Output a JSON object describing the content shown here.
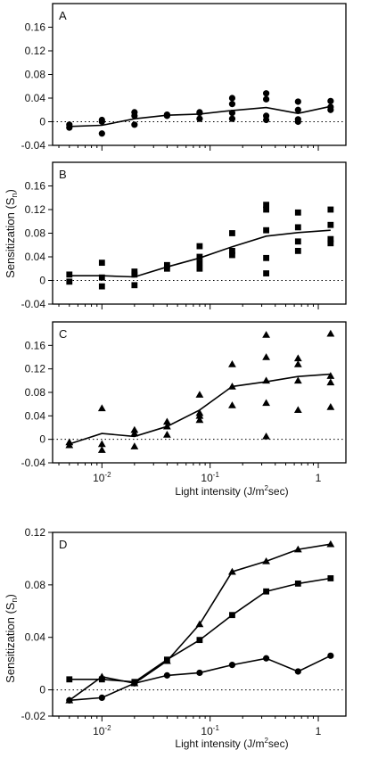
{
  "chart_data": [
    {
      "panel": "A",
      "type": "scatter",
      "x_scale": "log",
      "xlim": [
        0.0035,
        1.8
      ],
      "ylim": [
        -0.04,
        0.2
      ],
      "yticks": [
        -0.04,
        0,
        0.04,
        0.08,
        0.12,
        0.16
      ],
      "ytick_labels": [
        "-0.04",
        "0",
        "0.04",
        "0.08",
        "0.12",
        "0.16"
      ],
      "marker": "circle",
      "reference_line": 0,
      "points": [
        {
          "x": 0.005,
          "y": -0.01
        },
        {
          "x": 0.005,
          "y": -0.005
        },
        {
          "x": 0.01,
          "y": -0.02
        },
        {
          "x": 0.01,
          "y": 0
        },
        {
          "x": 0.01,
          "y": 0.003
        },
        {
          "x": 0.02,
          "y": -0.005
        },
        {
          "x": 0.02,
          "y": 0.01
        },
        {
          "x": 0.02,
          "y": 0.016
        },
        {
          "x": 0.04,
          "y": 0.01
        },
        {
          "x": 0.04,
          "y": 0.012
        },
        {
          "x": 0.08,
          "y": 0.005
        },
        {
          "x": 0.08,
          "y": 0.015
        },
        {
          "x": 0.08,
          "y": 0.016
        },
        {
          "x": 0.16,
          "y": 0.005
        },
        {
          "x": 0.16,
          "y": 0.015
        },
        {
          "x": 0.16,
          "y": 0.03
        },
        {
          "x": 0.16,
          "y": 0.04
        },
        {
          "x": 0.33,
          "y": 0.003
        },
        {
          "x": 0.33,
          "y": 0.01
        },
        {
          "x": 0.33,
          "y": 0.038
        },
        {
          "x": 0.33,
          "y": 0.048
        },
        {
          "x": 0.65,
          "y": 0
        },
        {
          "x": 0.65,
          "y": 0.004
        },
        {
          "x": 0.65,
          "y": 0.02
        },
        {
          "x": 0.65,
          "y": 0.034
        },
        {
          "x": 1.3,
          "y": 0.02
        },
        {
          "x": 1.3,
          "y": 0.025
        },
        {
          "x": 1.3,
          "y": 0.035
        }
      ],
      "mean_line": {
        "x": [
          0.005,
          0.01,
          0.02,
          0.04,
          0.08,
          0.16,
          0.33,
          0.65,
          1.3
        ],
        "y": [
          -0.008,
          -0.006,
          0.005,
          0.011,
          0.013,
          0.019,
          0.024,
          0.014,
          0.026
        ]
      }
    },
    {
      "panel": "B",
      "type": "scatter",
      "x_scale": "log",
      "xlim": [
        0.0035,
        1.8
      ],
      "ylim": [
        -0.04,
        0.2
      ],
      "yticks": [
        -0.04,
        0,
        0.04,
        0.08,
        0.12,
        0.16
      ],
      "ytick_labels": [
        "-0.04",
        "0",
        "0.04",
        "0.08",
        "0.12",
        "0.16"
      ],
      "marker": "square",
      "reference_line": 0,
      "points": [
        {
          "x": 0.005,
          "y": -0.002
        },
        {
          "x": 0.005,
          "y": 0.01
        },
        {
          "x": 0.01,
          "y": -0.01
        },
        {
          "x": 0.01,
          "y": 0.005
        },
        {
          "x": 0.01,
          "y": 0.03
        },
        {
          "x": 0.02,
          "y": -0.008
        },
        {
          "x": 0.02,
          "y": 0.01
        },
        {
          "x": 0.02,
          "y": 0.015
        },
        {
          "x": 0.04,
          "y": 0.02
        },
        {
          "x": 0.04,
          "y": 0.026
        },
        {
          "x": 0.08,
          "y": 0.02
        },
        {
          "x": 0.08,
          "y": 0.03
        },
        {
          "x": 0.08,
          "y": 0.04
        },
        {
          "x": 0.08,
          "y": 0.058
        },
        {
          "x": 0.16,
          "y": 0.043
        },
        {
          "x": 0.16,
          "y": 0.05
        },
        {
          "x": 0.16,
          "y": 0.08
        },
        {
          "x": 0.33,
          "y": 0.012
        },
        {
          "x": 0.33,
          "y": 0.038
        },
        {
          "x": 0.33,
          "y": 0.085
        },
        {
          "x": 0.33,
          "y": 0.12
        },
        {
          "x": 0.33,
          "y": 0.128
        },
        {
          "x": 0.65,
          "y": 0.05
        },
        {
          "x": 0.65,
          "y": 0.066
        },
        {
          "x": 0.65,
          "y": 0.09
        },
        {
          "x": 0.65,
          "y": 0.115
        },
        {
          "x": 1.3,
          "y": 0.063
        },
        {
          "x": 1.3,
          "y": 0.07
        },
        {
          "x": 1.3,
          "y": 0.094
        },
        {
          "x": 1.3,
          "y": 0.12
        }
      ],
      "mean_line": {
        "x": [
          0.005,
          0.01,
          0.02,
          0.04,
          0.08,
          0.16,
          0.33,
          0.65,
          1.3
        ],
        "y": [
          0.008,
          0.008,
          0.006,
          0.023,
          0.038,
          0.057,
          0.075,
          0.081,
          0.085
        ]
      }
    },
    {
      "panel": "C",
      "type": "scatter",
      "x_scale": "log",
      "xlim": [
        0.0035,
        1.8
      ],
      "ylim": [
        -0.04,
        0.2
      ],
      "yticks": [
        -0.04,
        0,
        0.04,
        0.08,
        0.12,
        0.16
      ],
      "ytick_labels": [
        "-0.04",
        "0",
        "0.04",
        "0.08",
        "0.12",
        "0.16"
      ],
      "marker": "triangle",
      "reference_line": 0,
      "points": [
        {
          "x": 0.005,
          "y": -0.01
        },
        {
          "x": 0.005,
          "y": -0.005
        },
        {
          "x": 0.01,
          "y": -0.018
        },
        {
          "x": 0.01,
          "y": -0.008
        },
        {
          "x": 0.01,
          "y": 0.053
        },
        {
          "x": 0.02,
          "y": -0.012
        },
        {
          "x": 0.02,
          "y": 0.01
        },
        {
          "x": 0.02,
          "y": 0.016
        },
        {
          "x": 0.04,
          "y": 0.008
        },
        {
          "x": 0.04,
          "y": 0.022
        },
        {
          "x": 0.04,
          "y": 0.03
        },
        {
          "x": 0.08,
          "y": 0.033
        },
        {
          "x": 0.08,
          "y": 0.04
        },
        {
          "x": 0.08,
          "y": 0.045
        },
        {
          "x": 0.08,
          "y": 0.076
        },
        {
          "x": 0.16,
          "y": 0.058
        },
        {
          "x": 0.16,
          "y": 0.09
        },
        {
          "x": 0.16,
          "y": 0.128
        },
        {
          "x": 0.33,
          "y": 0.005
        },
        {
          "x": 0.33,
          "y": 0.062
        },
        {
          "x": 0.33,
          "y": 0.1
        },
        {
          "x": 0.33,
          "y": 0.14
        },
        {
          "x": 0.33,
          "y": 0.178
        },
        {
          "x": 0.65,
          "y": 0.05
        },
        {
          "x": 0.65,
          "y": 0.1
        },
        {
          "x": 0.65,
          "y": 0.128
        },
        {
          "x": 0.65,
          "y": 0.138
        },
        {
          "x": 1.3,
          "y": 0.055
        },
        {
          "x": 1.3,
          "y": 0.097
        },
        {
          "x": 1.3,
          "y": 0.108
        },
        {
          "x": 1.3,
          "y": 0.18
        }
      ],
      "mean_line": {
        "x": [
          0.005,
          0.01,
          0.02,
          0.04,
          0.08,
          0.16,
          0.33,
          0.65,
          1.3
        ],
        "y": [
          -0.008,
          0.01,
          0.005,
          0.022,
          0.05,
          0.09,
          0.098,
          0.107,
          0.111
        ]
      }
    },
    {
      "panel": "D",
      "type": "line",
      "x_scale": "log",
      "xlim": [
        0.0035,
        1.8
      ],
      "ylim": [
        -0.02,
        0.12
      ],
      "yticks": [
        -0.02,
        0,
        0.04,
        0.08,
        0.12
      ],
      "ytick_labels": [
        "-0.02",
        "0",
        "0.04",
        "0.08",
        "0.12"
      ],
      "reference_line": 0,
      "x": [
        0.005,
        0.01,
        0.02,
        0.04,
        0.08,
        0.16,
        0.33,
        0.65,
        1.3
      ],
      "series": [
        {
          "marker": "triangle",
          "values": [
            -0.008,
            0.01,
            0.005,
            0.022,
            0.05,
            0.09,
            0.098,
            0.107,
            0.111
          ]
        },
        {
          "marker": "square",
          "values": [
            0.008,
            0.008,
            0.006,
            0.023,
            0.038,
            0.057,
            0.075,
            0.081,
            0.085
          ]
        },
        {
          "marker": "circle",
          "values": [
            -0.008,
            -0.006,
            0.005,
            0.011,
            0.013,
            0.019,
            0.024,
            0.014,
            0.026
          ]
        }
      ]
    }
  ],
  "figure": {
    "panel_labels": [
      "A",
      "B",
      "C",
      "D"
    ],
    "ylabel": "Sensitization (S",
    "ylabel_sub": "n",
    "ylabel_close": ")",
    "xlabel": "Light intensity (J/m",
    "xlabel_sup": "2",
    "xlabel_end": "sec)",
    "xtick_labels": [
      {
        "value": 0.01,
        "base": "10",
        "exp": "-2"
      },
      {
        "value": 0.1,
        "base": "10",
        "exp": "-1"
      },
      {
        "value": 1,
        "base": "1",
        "exp": ""
      }
    ]
  }
}
